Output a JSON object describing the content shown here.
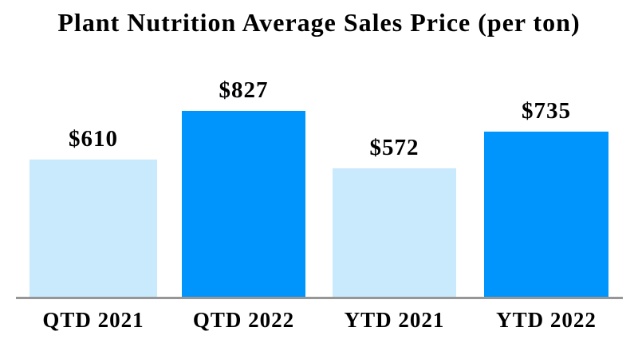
{
  "chart_data": {
    "type": "bar",
    "title": "Plant Nutrition Average Sales Price (per ton)",
    "categories": [
      "QTD 2021",
      "QTD 2022",
      "YTD 2021",
      "YTD 2022"
    ],
    "values": [
      610,
      827,
      572,
      735
    ],
    "value_labels": [
      "$610",
      "$827",
      "$572",
      "$735"
    ],
    "series": [
      {
        "name": "Average Sales Price per ton",
        "values": [
          610,
          827,
          572,
          735
        ]
      }
    ],
    "ylim": [
      0,
      880
    ],
    "grid": false,
    "legend": "none",
    "y_axis_visible": false,
    "data_labels_position": "above-bar",
    "bar_colors": [
      "#C9E9FC",
      "#0095FD",
      "#C9E9FC",
      "#0095FD"
    ],
    "colors": {
      "light_blue": "#C9E9FC",
      "bright_blue": "#0095FD",
      "axis_line": "#969696",
      "text": "#000000",
      "background": "#FFFFFF"
    }
  }
}
